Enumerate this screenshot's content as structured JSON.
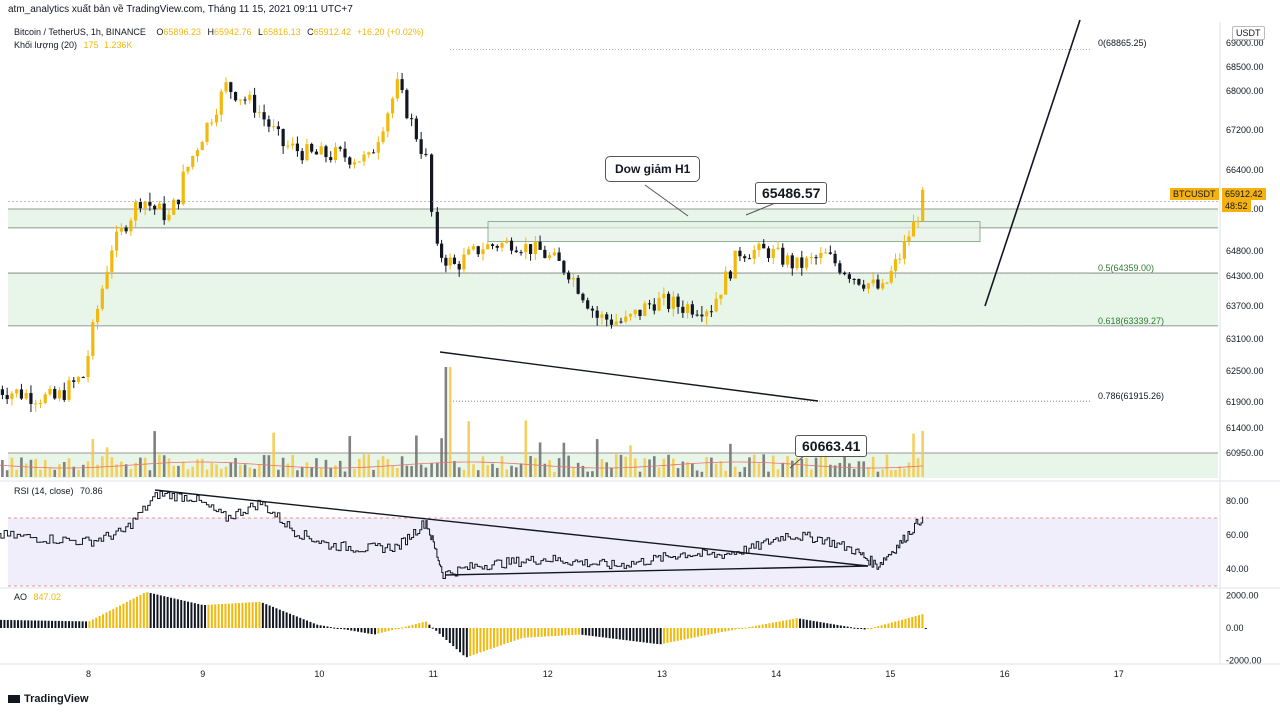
{
  "header": {
    "publisher": "atm_analytics xuất bản về TradingView.com, Tháng 11 15, 2021 09:11 UTC+7",
    "symbol_line": "Bitcoin / TetherUS, 1h, BINANCE",
    "ohlc": {
      "o_label": "O",
      "o": "65896.23",
      "h_label": "H",
      "h": "65942.76",
      "l_label": "L",
      "l": "65816.13",
      "c_label": "C",
      "c": "65912.42",
      "change": "+16.20 (+0.02%)"
    },
    "volume_label": "Khối lượng (20)",
    "volume_values": [
      "175",
      "1.236K"
    ]
  },
  "currency": "USDT",
  "price_tag": {
    "symbol": "BTCUSDT",
    "price": "65912.42",
    "countdown": "48:52"
  },
  "annotations": {
    "note": "Dow giảm H1",
    "box1": "65486.57",
    "box2": "60663.41"
  },
  "fib_labels": [
    "0(68865.25)",
    "0.5(64359.00)",
    "0.618(63339.27)",
    "0.786(61915.26)"
  ],
  "rsi": {
    "label": "RSI (14, close)",
    "value": "70.86"
  },
  "ao": {
    "label": "AO",
    "value": "847.02"
  },
  "footer": {
    "brand": "TradingView"
  },
  "colors": {
    "up": "#f0b90b",
    "down": "#131722",
    "zone": "#e8f5e9",
    "rsi_band": "#f0eefb",
    "accent": "#f5b10f"
  },
  "chart_data": [
    {
      "type": "candlestick",
      "title": "Bitcoin / TetherUS, 1h, BINANCE",
      "x_ticks": [
        "8",
        "9",
        "10",
        "11",
        "12",
        "13",
        "14",
        "15",
        "16",
        "17"
      ],
      "y_ticks": [
        "69000.00",
        "68500.00",
        "68000.00",
        "67200.00",
        "66400.00",
        "65800.00",
        "64800.00",
        "64300.00",
        "63700.00",
        "63100.00",
        "62500.00",
        "61900.00",
        "61400.00",
        "60950.00"
      ],
      "ylim": [
        60800,
        69200
      ],
      "fib_levels": [
        {
          "ratio": "0",
          "price": 68865.25
        },
        {
          "ratio": "0.5",
          "price": 64359.0
        },
        {
          "ratio": "0.618",
          "price": 63339.27
        },
        {
          "ratio": "0.786",
          "price": 61915.26
        }
      ],
      "horizontal_lines": [
        65800,
        65350,
        64359,
        63339.27,
        60950
      ],
      "support_zones": [
        [
          65350,
          65800
        ],
        [
          63339.27,
          64359
        ]
      ],
      "last_price": 65912.42,
      "series": [
        {
          "name": "close",
          "x": [
            7.2,
            7.45,
            7.7,
            7.95,
            8.2,
            8.45,
            8.7,
            8.95,
            9.2,
            9.45,
            9.7,
            9.95,
            10.2,
            10.45,
            10.7,
            10.95,
            11.05,
            11.2,
            11.45,
            11.7,
            11.95,
            12.2,
            12.45,
            12.7,
            12.95,
            13.2,
            13.45,
            13.7,
            13.95,
            14.2,
            14.45,
            14.7,
            14.95,
            15.1,
            15.3
          ],
          "values": [
            62150,
            62050,
            61950,
            62400,
            64900,
            66000,
            65600,
            66900,
            68100,
            67700,
            66900,
            66700,
            66700,
            66600,
            68100,
            66600,
            64800,
            64500,
            64900,
            65000,
            64800,
            64400,
            63500,
            63400,
            63800,
            63700,
            63700,
            64800,
            64800,
            64500,
            64700,
            64300,
            64000,
            64700,
            65912
          ]
        }
      ]
    },
    {
      "type": "bar",
      "title": "Khối lượng (20)",
      "note": "volume histogram under price"
    },
    {
      "type": "line",
      "title": "RSI (14, close)",
      "y_ticks": [
        "80.00",
        "60.00",
        "40.00"
      ],
      "ylim": [
        30,
        90
      ],
      "band": [
        30,
        70
      ],
      "last_value": 70.86,
      "series": [
        {
          "name": "RSI",
          "x": [
            7.2,
            7.6,
            8.0,
            8.3,
            8.6,
            8.9,
            9.2,
            9.5,
            9.8,
            10.1,
            10.4,
            10.7,
            10.95,
            11.1,
            11.4,
            11.7,
            12.0,
            12.3,
            12.6,
            12.9,
            13.2,
            13.5,
            13.8,
            14.1,
            14.4,
            14.7,
            14.9,
            15.1,
            15.3
          ],
          "values": [
            60,
            58,
            56,
            62,
            84,
            82,
            70,
            79,
            62,
            54,
            52,
            53,
            68,
            37,
            42,
            44,
            46,
            44,
            42,
            45,
            49,
            48,
            52,
            60,
            58,
            51,
            42,
            55,
            70.86
          ]
        }
      ]
    },
    {
      "type": "bar",
      "title": "AO",
      "y_ticks": [
        "2000.00",
        "0.00",
        "-2000.00"
      ],
      "ylim": [
        -2200,
        2200
      ],
      "last_value": 847.02
    }
  ]
}
